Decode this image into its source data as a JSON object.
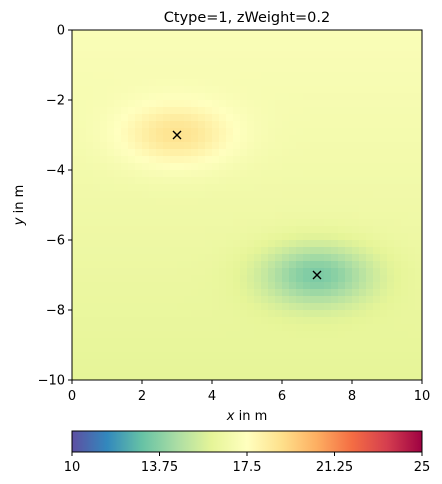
{
  "chart_data": {
    "type": "heatmap",
    "title": "Ctype=1, zWeight=0.2",
    "xlabel_var": "x",
    "xlabel_rest": " in m",
    "ylabel_var": "y",
    "ylabel_rest": " in m",
    "xlim": [
      0,
      10
    ],
    "ylim": [
      -10,
      0
    ],
    "x_ticks": [
      0,
      2,
      4,
      6,
      8,
      10
    ],
    "x_tick_labels": [
      "0",
      "2",
      "4",
      "6",
      "8",
      "10"
    ],
    "y_ticks": [
      0,
      -2,
      -4,
      -6,
      -8,
      -10
    ],
    "y_tick_labels": [
      "0",
      "−2",
      "−4",
      "−6",
      "−8",
      "−10"
    ],
    "markers": [
      {
        "x": 3,
        "y": -3,
        "symbol": "x"
      },
      {
        "x": 7,
        "y": -7,
        "symbol": "x"
      }
    ],
    "field": {
      "background": 17.2,
      "gradient_bottom": 16.0,
      "anomalies": [
        {
          "x": 3,
          "y": -3,
          "value": 19.2,
          "radius": 1.6
        },
        {
          "x": 7,
          "y": -7,
          "value": 14.3,
          "radius": 1.6
        }
      ]
    },
    "colorbar": {
      "colormap": "Spectral_r",
      "vmin": 10,
      "vmax": 25,
      "ticks": [
        10,
        13.75,
        17.5,
        21.25,
        25
      ],
      "tick_labels": [
        "10",
        "13.75",
        "17.5",
        "21.25",
        "25"
      ],
      "colors": [
        "#5e4fa2",
        "#3288bd",
        "#66c2a5",
        "#abdda4",
        "#e6f598",
        "#ffffbf",
        "#fee08b",
        "#fdae61",
        "#f46d43",
        "#d53e4f",
        "#9e0142"
      ]
    },
    "grid": false
  }
}
